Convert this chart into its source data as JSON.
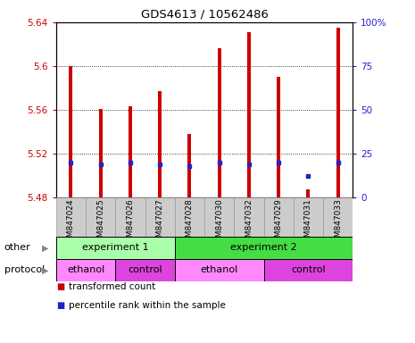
{
  "title": "GDS4613 / 10562486",
  "samples": [
    "GSM847024",
    "GSM847025",
    "GSM847026",
    "GSM847027",
    "GSM847028",
    "GSM847030",
    "GSM847032",
    "GSM847029",
    "GSM847031",
    "GSM847033"
  ],
  "bar_bottom": 5.48,
  "bar_tops": [
    5.6,
    5.561,
    5.563,
    5.577,
    5.538,
    5.616,
    5.631,
    5.59,
    5.487,
    5.635
  ],
  "percentile_values": [
    20,
    19,
    20,
    19,
    18,
    20,
    19,
    20,
    12,
    20
  ],
  "ylim_left": [
    5.48,
    5.64
  ],
  "ylim_right": [
    0,
    100
  ],
  "yticks_left": [
    5.48,
    5.52,
    5.56,
    5.6,
    5.64
  ],
  "yticks_right": [
    0,
    25,
    50,
    75,
    100
  ],
  "ytick_labels_right": [
    "0",
    "25",
    "50",
    "75",
    "100%"
  ],
  "bar_color": "#cc0000",
  "dot_color": "#2222cc",
  "experiment_groups": [
    {
      "label": "experiment 1",
      "start": 0,
      "end": 4,
      "color": "#aaffaa"
    },
    {
      "label": "experiment 2",
      "start": 4,
      "end": 10,
      "color": "#44dd44"
    }
  ],
  "protocol_groups": [
    {
      "label": "ethanol",
      "start": 0,
      "end": 2,
      "color": "#ff88ff"
    },
    {
      "label": "control",
      "start": 2,
      "end": 4,
      "color": "#dd44dd"
    },
    {
      "label": "ethanol",
      "start": 4,
      "end": 7,
      "color": "#ff88ff"
    },
    {
      "label": "control",
      "start": 7,
      "end": 10,
      "color": "#dd44dd"
    }
  ],
  "legend_items": [
    {
      "label": "transformed count",
      "color": "#cc0000"
    },
    {
      "label": "percentile rank within the sample",
      "color": "#2222cc"
    }
  ],
  "other_label": "other",
  "protocol_label": "protocol",
  "tick_color_left": "#cc0000",
  "tick_color_right": "#2222cc",
  "bg_color": "#ffffff",
  "sample_bg_color": "#cccccc",
  "fig_width": 4.65,
  "fig_height": 3.84,
  "fig_dpi": 100,
  "bar_width": 0.12
}
